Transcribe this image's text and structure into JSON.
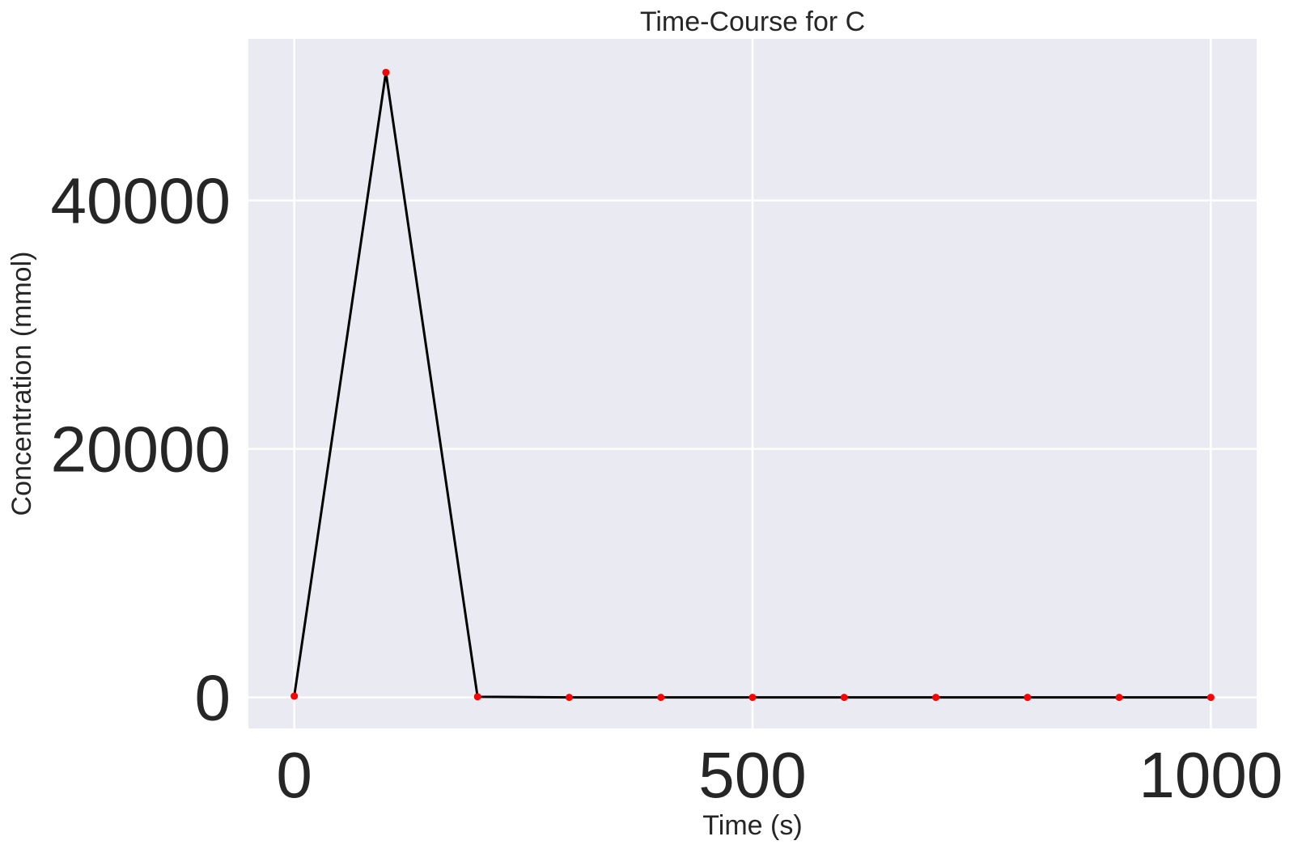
{
  "chart_data": {
    "type": "line",
    "title": "Time-Course for C",
    "xlabel": "Time (s)",
    "ylabel": "Concentration (mmol)",
    "xlim": [
      -50,
      1050
    ],
    "ylim": [
      -2500,
      53000
    ],
    "xticks": [
      0,
      500,
      1000
    ],
    "xtick_labels": [
      "0",
      "500",
      "1000"
    ],
    "yticks": [
      0,
      20000,
      40000
    ],
    "ytick_labels": [
      "0",
      "20000",
      "40000"
    ],
    "grid": true,
    "legend": "none",
    "colors": {
      "plot_background": "#eaeaf2",
      "grid": "#ffffff",
      "line": "#000000",
      "marker": "#ff0000"
    },
    "series": [
      {
        "x": [
          0,
          100,
          200,
          300,
          400,
          500,
          600,
          700,
          800,
          900,
          1000
        ],
        "y": [
          100,
          50300,
          50,
          0,
          0,
          0,
          0,
          0,
          0,
          0,
          0
        ]
      }
    ]
  }
}
